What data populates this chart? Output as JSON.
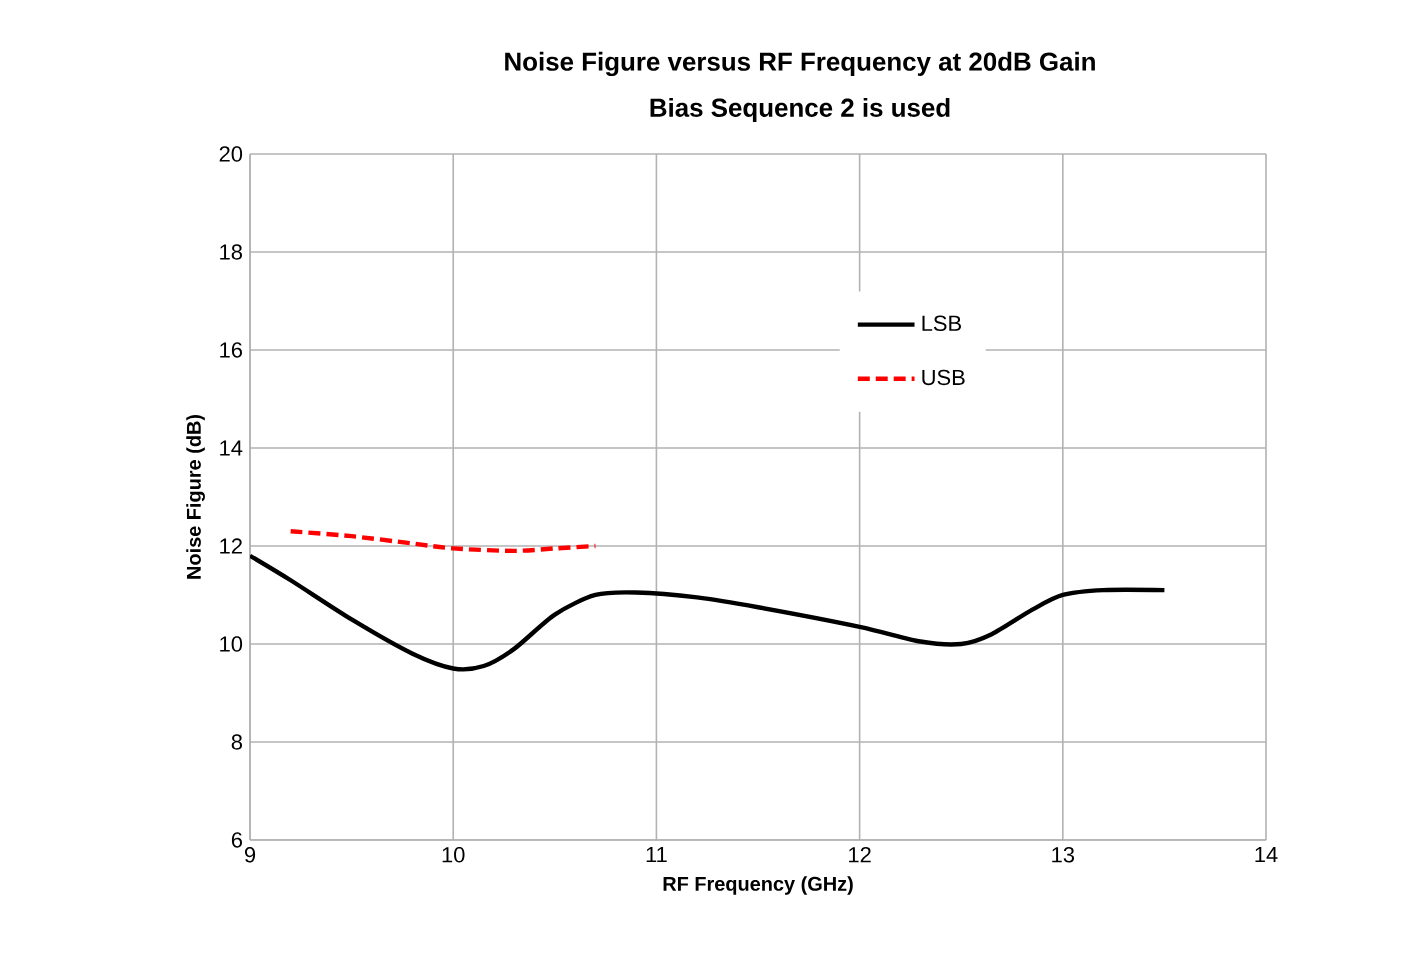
{
  "chart_data": {
    "type": "line",
    "title": "Noise Figure versus RF Frequency at 20dB Gain",
    "subtitle": "Bias Sequence 2 is used",
    "xlabel": "RF Frequency (GHz)",
    "ylabel": "Noise Figure (dB)",
    "xlim": [
      9,
      14
    ],
    "ylim": [
      6,
      20
    ],
    "xticks": [
      9,
      10,
      11,
      12,
      13,
      14
    ],
    "yticks": [
      6,
      8,
      10,
      12,
      14,
      16,
      18,
      20
    ],
    "grid": true,
    "legend": "top right",
    "series": [
      {
        "name": "LSB",
        "color": "#000000",
        "line_style": "solid",
        "x": [
          9.0,
          9.2,
          9.5,
          9.8,
          10.0,
          10.15,
          10.3,
          10.5,
          10.7,
          10.9,
          11.2,
          11.5,
          12.0,
          12.3,
          12.5,
          12.65,
          12.85,
          13.0,
          13.2,
          13.5
        ],
        "values": [
          11.8,
          11.3,
          10.5,
          9.8,
          9.5,
          9.55,
          9.9,
          10.6,
          11.0,
          11.05,
          10.95,
          10.75,
          10.35,
          10.05,
          10.0,
          10.2,
          10.7,
          11.0,
          11.1,
          11.1
        ]
      },
      {
        "name": "USB",
        "color": "#ff0000",
        "line_style": "dashed",
        "x": [
          9.2,
          9.5,
          9.8,
          10.0,
          10.3,
          10.5,
          10.7
        ],
        "values": [
          12.3,
          12.2,
          12.05,
          11.95,
          11.9,
          11.95,
          12.0
        ]
      }
    ]
  }
}
